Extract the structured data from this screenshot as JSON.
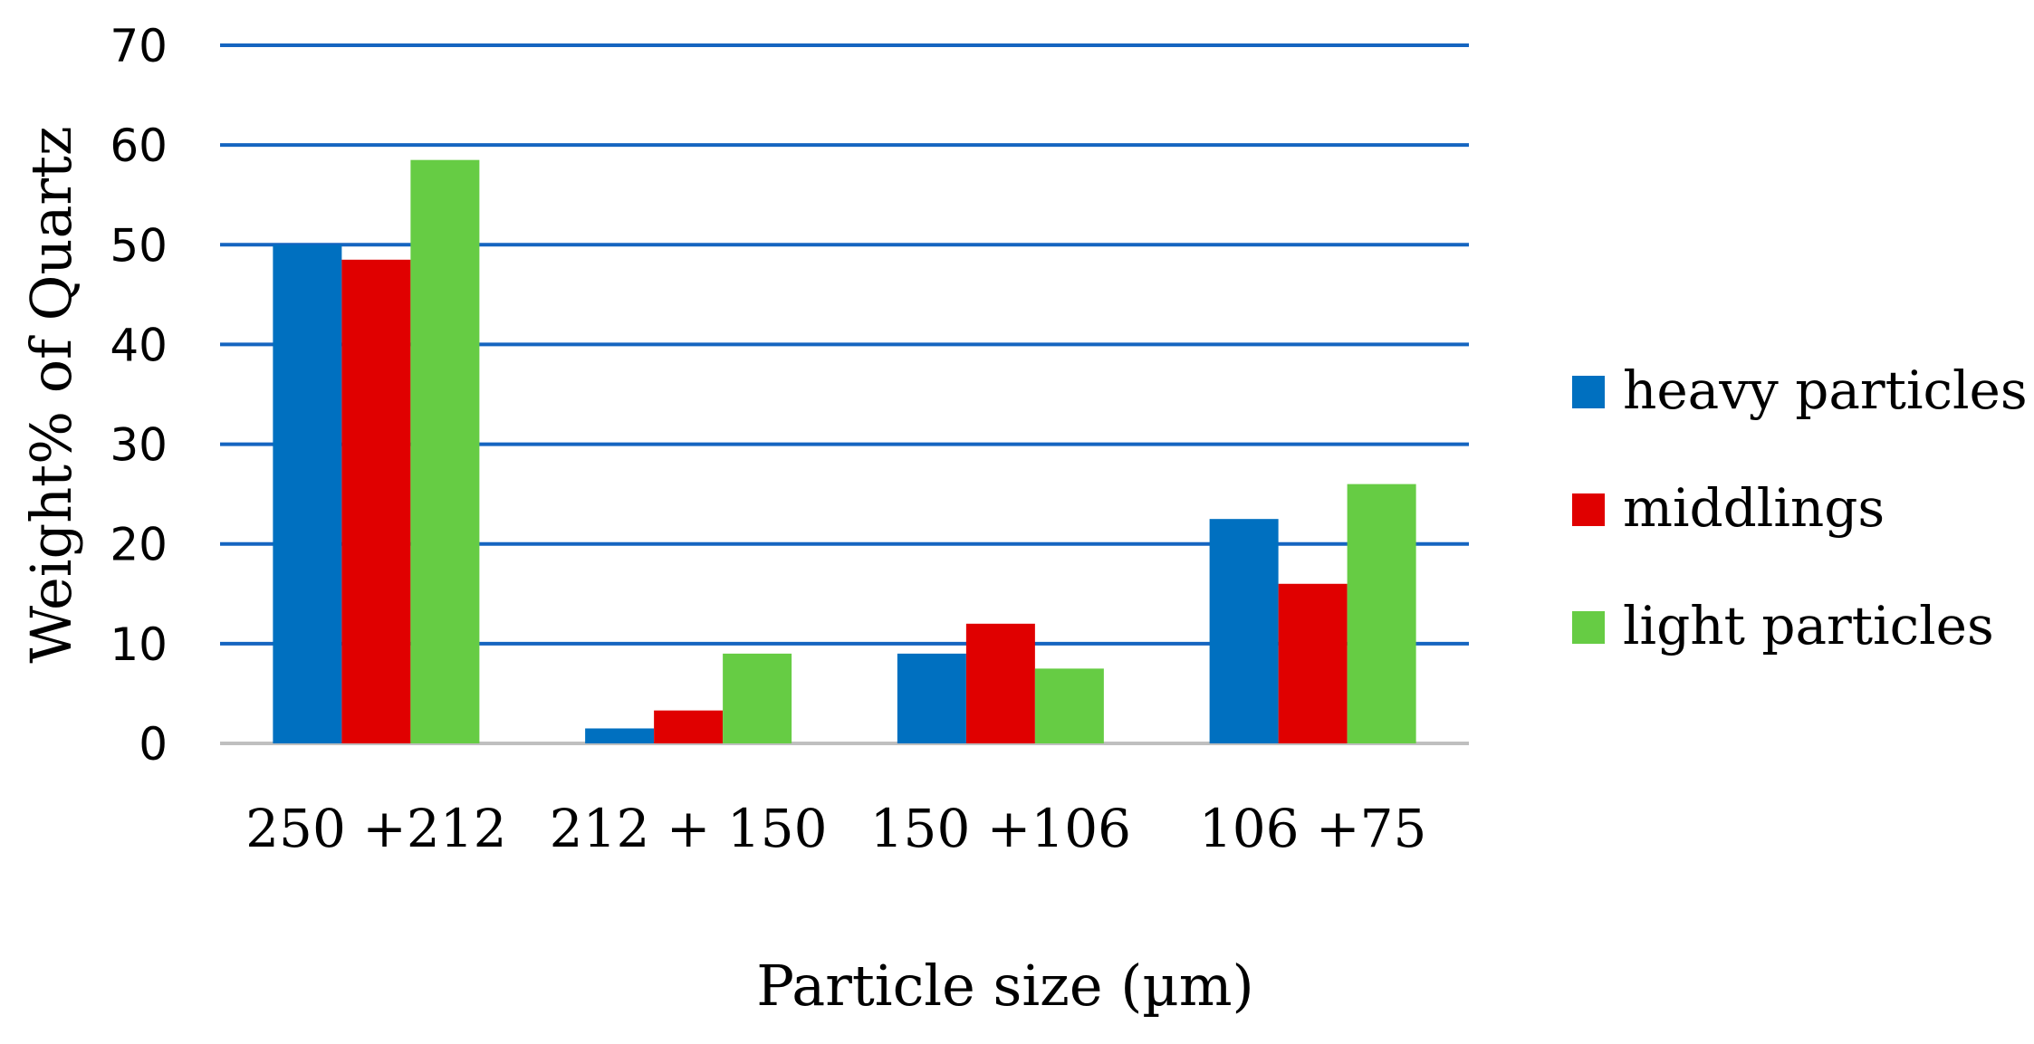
{
  "chart_data": {
    "type": "bar",
    "title": "",
    "xlabel": "Particle size (µm)",
    "ylabel": "Weight% of Quartz",
    "categories": [
      "250 +212",
      "212 + 150",
      "150 +106",
      "106 +75"
    ],
    "series": [
      {
        "name": "heavy particles",
        "color": "#0070C0",
        "values": [
          50,
          1.5,
          9,
          22.5
        ]
      },
      {
        "name": "middlings",
        "color": "#E00000",
        "values": [
          48.5,
          3.3,
          12,
          16
        ]
      },
      {
        "name": "light particles",
        "color": "#66CC44",
        "values": [
          58.5,
          9,
          7.5,
          26
        ]
      }
    ],
    "ylim": [
      0,
      70
    ],
    "yticks": [
      0,
      10,
      20,
      30,
      40,
      50,
      60,
      70
    ],
    "grid": true,
    "gridline_color": "#1565C0",
    "legend_position": "right"
  }
}
